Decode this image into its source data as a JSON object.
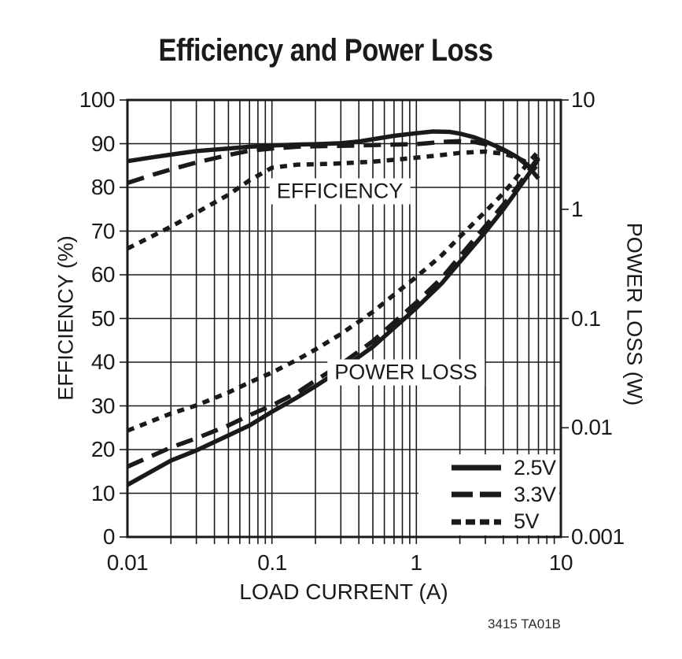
{
  "figure": {
    "title": "Efficiency and Power Loss",
    "footnote": "3415 TA01B"
  },
  "chart_data": {
    "type": "line",
    "title": "Efficiency and Power Loss",
    "ink_color": "#1a1a1a",
    "grid": "on",
    "x_axis": {
      "label": "LOAD CURRENT (A)",
      "scale": "log",
      "min": 0.01,
      "max": 10,
      "ticks": [
        {
          "value": 0.01,
          "label": "0.01"
        },
        {
          "value": 0.1,
          "label": "0.1"
        },
        {
          "value": 1,
          "label": "1"
        },
        {
          "value": 10,
          "label": "10"
        }
      ]
    },
    "y_left_axis": {
      "label": "EFFICIENCY (%)",
      "scale": "linear",
      "min": 0,
      "max": 100,
      "grid_step": 10,
      "ticks": [
        {
          "value": 100,
          "label": "100"
        },
        {
          "value": 90,
          "label": "90"
        },
        {
          "value": 80,
          "label": "80"
        },
        {
          "value": 70,
          "label": "70"
        },
        {
          "value": 60,
          "label": "60"
        },
        {
          "value": 50,
          "label": "50"
        },
        {
          "value": 40,
          "label": "40"
        },
        {
          "value": 30,
          "label": "30"
        },
        {
          "value": 20,
          "label": "20"
        },
        {
          "value": 10,
          "label": "10"
        },
        {
          "value": 0,
          "label": "0"
        }
      ]
    },
    "y_right_axis": {
      "label": "POWER LOSS (W)",
      "scale": "log",
      "min": 0.001,
      "max": 10,
      "ticks": [
        {
          "value": 10,
          "label": "10"
        },
        {
          "value": 1,
          "label": "1"
        },
        {
          "value": 0.1,
          "label": "0.1"
        },
        {
          "value": 0.01,
          "label": "0.01"
        },
        {
          "value": 0.001,
          "label": "0.001"
        }
      ]
    },
    "annotations": [
      {
        "text": "EFFICIENCY",
        "x": 0.295,
        "y_percent": 79.1
      },
      {
        "text": "POWER LOSS",
        "x": 0.845,
        "y_percent": 37.7
      }
    ],
    "legend": {
      "position": "bottom-right",
      "entries": [
        {
          "label": "2.5V",
          "line_style": "solid"
        },
        {
          "label": "3.3V",
          "line_style": "long-dash"
        },
        {
          "label": "5V",
          "line_style": "short-dash"
        }
      ]
    },
    "series": [
      {
        "name": "2.5V",
        "measure": "efficiency",
        "axis": "left",
        "line_style": "solid",
        "points": [
          [
            0.01,
            86
          ],
          [
            0.015,
            86.9
          ],
          [
            0.02,
            87.5
          ],
          [
            0.03,
            88.3
          ],
          [
            0.05,
            88.9
          ],
          [
            0.07,
            89.3
          ],
          [
            0.1,
            89.6
          ],
          [
            0.15,
            89.8
          ],
          [
            0.2,
            89.9
          ],
          [
            0.3,
            90.1
          ],
          [
            0.4,
            90.5
          ],
          [
            0.5,
            91
          ],
          [
            0.7,
            91.8
          ],
          [
            1,
            92.4
          ],
          [
            1.3,
            92.8
          ],
          [
            1.7,
            92.7
          ],
          [
            2,
            92.3
          ],
          [
            2.5,
            91.5
          ],
          [
            3,
            90.5
          ],
          [
            4,
            88.7
          ],
          [
            5,
            86.9
          ],
          [
            6,
            84.7
          ],
          [
            7,
            82
          ]
        ]
      },
      {
        "name": "3.3V",
        "measure": "efficiency",
        "axis": "left",
        "line_style": "long-dash",
        "points": [
          [
            0.01,
            81
          ],
          [
            0.015,
            82.9
          ],
          [
            0.02,
            84.1
          ],
          [
            0.03,
            85.7
          ],
          [
            0.05,
            87.4
          ],
          [
            0.07,
            88.4
          ],
          [
            0.1,
            88.9
          ],
          [
            0.15,
            89.3
          ],
          [
            0.2,
            89.4
          ],
          [
            0.3,
            89.5
          ],
          [
            0.5,
            89.7
          ],
          [
            0.7,
            89.8
          ],
          [
            1,
            89.9
          ],
          [
            1.5,
            90.4
          ],
          [
            2,
            90.6
          ],
          [
            2.5,
            90.4
          ],
          [
            3,
            89.9
          ],
          [
            4,
            88.5
          ],
          [
            5,
            86.9
          ],
          [
            6,
            84.9
          ],
          [
            7,
            82.4
          ]
        ]
      },
      {
        "name": "5V",
        "measure": "efficiency",
        "axis": "left",
        "line_style": "short-dash",
        "points": [
          [
            0.01,
            66
          ],
          [
            0.015,
            68.9
          ],
          [
            0.02,
            71
          ],
          [
            0.03,
            74.2
          ],
          [
            0.05,
            78.3
          ],
          [
            0.07,
            81.6
          ],
          [
            0.1,
            84.5
          ],
          [
            0.15,
            85.2
          ],
          [
            0.2,
            85.3
          ],
          [
            0.3,
            85.5
          ],
          [
            0.5,
            85.9
          ],
          [
            0.7,
            86.3
          ],
          [
            1,
            86.8
          ],
          [
            1.5,
            87.4
          ],
          [
            2,
            87.9
          ],
          [
            3,
            88.2
          ],
          [
            4,
            87.7
          ],
          [
            5,
            86.8
          ],
          [
            6,
            85.5
          ],
          [
            7,
            83.8
          ]
        ]
      },
      {
        "name": "2.5V",
        "measure": "power_loss",
        "axis": "right",
        "line_style": "solid",
        "points": [
          [
            0.01,
            0.003
          ],
          [
            0.02,
            0.005
          ],
          [
            0.03,
            0.0062
          ],
          [
            0.05,
            0.0085
          ],
          [
            0.07,
            0.0105
          ],
          [
            0.1,
            0.014
          ],
          [
            0.15,
            0.019
          ],
          [
            0.2,
            0.024
          ],
          [
            0.3,
            0.034
          ],
          [
            0.5,
            0.055
          ],
          [
            0.7,
            0.082
          ],
          [
            1,
            0.125
          ],
          [
            1.5,
            0.21
          ],
          [
            2,
            0.33
          ],
          [
            3,
            0.62
          ],
          [
            4,
            1.0
          ],
          [
            5,
            1.5
          ],
          [
            6,
            2.1
          ],
          [
            7,
            2.9
          ]
        ]
      },
      {
        "name": "3.3V",
        "measure": "power_loss",
        "axis": "right",
        "line_style": "long-dash",
        "points": [
          [
            0.01,
            0.0044
          ],
          [
            0.02,
            0.0066
          ],
          [
            0.03,
            0.008
          ],
          [
            0.05,
            0.0105
          ],
          [
            0.07,
            0.013
          ],
          [
            0.1,
            0.016
          ],
          [
            0.15,
            0.021
          ],
          [
            0.2,
            0.027
          ],
          [
            0.3,
            0.038
          ],
          [
            0.5,
            0.062
          ],
          [
            0.7,
            0.092
          ],
          [
            1,
            0.14
          ],
          [
            1.5,
            0.235
          ],
          [
            2,
            0.37
          ],
          [
            3,
            0.7
          ],
          [
            4,
            1.1
          ],
          [
            5,
            1.6
          ],
          [
            6,
            2.25
          ],
          [
            7,
            3.0
          ]
        ]
      },
      {
        "name": "5V",
        "measure": "power_loss",
        "axis": "right",
        "line_style": "short-dash",
        "points": [
          [
            0.01,
            0.0094
          ],
          [
            0.02,
            0.0135
          ],
          [
            0.03,
            0.016
          ],
          [
            0.05,
            0.021
          ],
          [
            0.07,
            0.026
          ],
          [
            0.1,
            0.032
          ],
          [
            0.15,
            0.042
          ],
          [
            0.2,
            0.052
          ],
          [
            0.3,
            0.072
          ],
          [
            0.5,
            0.115
          ],
          [
            0.7,
            0.165
          ],
          [
            1,
            0.24
          ],
          [
            1.5,
            0.38
          ],
          [
            2,
            0.56
          ],
          [
            3,
            0.95
          ],
          [
            4,
            1.4
          ],
          [
            5,
            2.0
          ],
          [
            6,
            2.7
          ],
          [
            7,
            3.4
          ]
        ]
      }
    ]
  }
}
